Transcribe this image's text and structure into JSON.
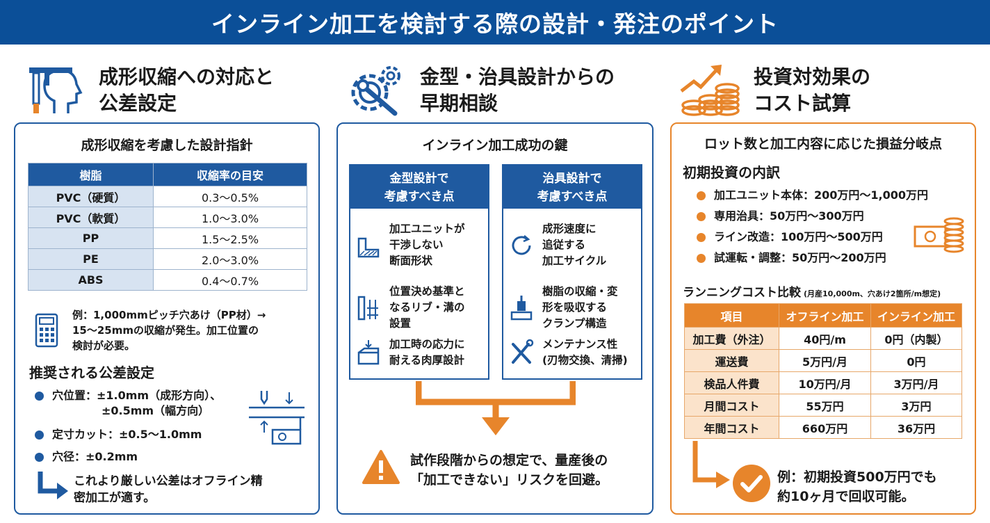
{
  "banner": {
    "title": "インライン加工を検討する際の設計・発注のポイント"
  },
  "sec1": {
    "title_line1": "成形収縮への対応と",
    "title_line2": "公差設定",
    "panel_title": "成形収縮を考慮した設計指針",
    "table": {
      "headers": [
        "樹脂",
        "収縮率の目安"
      ],
      "rows": [
        [
          "PVC（硬質）",
          "0.3〜0.5%"
        ],
        [
          "PVC（軟質）",
          "1.0〜3.0%"
        ],
        [
          "PP",
          "1.5〜2.5%"
        ],
        [
          "PE",
          "2.0〜3.0%"
        ],
        [
          "ABS",
          "0.4〜0.7%"
        ]
      ]
    },
    "example": [
      "例：1,000mmピッチ穴あけ（PP材）→",
      "15〜25mmの収縮が発生。加工位置の",
      "検討が必要。"
    ],
    "tol_heading": "推奨される公差設定",
    "tolerances": [
      {
        "line1": "穴位置：±1.0mm（成形方向）、",
        "line2": "±0.5mm（幅方向）"
      },
      {
        "line1": "定寸カット：±0.5〜1.0mm",
        "line2": ""
      },
      {
        "line1": "穴径：±0.2mm",
        "line2": ""
      }
    ],
    "note": [
      "これより厳しい公差はオフライン精",
      "密加工が適す。"
    ]
  },
  "sec2": {
    "title_line1": "金型・治具設計からの",
    "title_line2": "早期相談",
    "panel_title": "インライン加工成功の鍵",
    "col1": {
      "header": "金型設計で\n考慮すべき点",
      "items": [
        "加工ユニットが\n干渉しない\n断面形状",
        "位置決め基準と\nなるリブ・溝の\n設置",
        "加工時の応力に\n耐える肉厚設計"
      ]
    },
    "col2": {
      "header": "治具設計で\n考慮すべき点",
      "items": [
        "成形速度に\n追従する\n加工サイクル",
        "樹脂の収縮・変\n形を吸収する\nクランプ構造",
        "メンテナンス性\n(刃物交換、清掃)"
      ]
    },
    "warning": [
      "試作段階からの想定で、量産後の",
      "「加工できない」リスクを回避。"
    ]
  },
  "sec3": {
    "title_line1": "投資対効果の",
    "title_line2": "コスト試算",
    "panel_title": "ロット数と加工内容に応じた損益分岐点",
    "invest_heading": "初期投資の内訳",
    "invest_items": [
      "加工ユニット本体：200万円〜1,000万円",
      "専用治具：50万円〜300万円",
      "ライン改造：100万円〜500万円",
      "試運転・調整：50万円〜200万円"
    ],
    "running_heading": "ランニングコスト比較",
    "running_note": "(月産10,000m、穴あけ2箇所/m想定)",
    "table": {
      "headers": [
        "項目",
        "オフライン加工",
        "インライン加工"
      ],
      "rows": [
        [
          "加工費（外注）",
          "40円/m",
          "0円（内製）"
        ],
        [
          "運送費",
          "5万円/月",
          "0円"
        ],
        [
          "検品人件費",
          "10万円/月",
          "3万円/月"
        ],
        [
          "月間コスト",
          "55万円",
          "3万円"
        ],
        [
          "年間コスト",
          "660万円",
          "36万円"
        ]
      ]
    },
    "conclusion": [
      "例：初期投資500万円でも",
      "約10ヶ月で回収可能。"
    ]
  },
  "colors": {
    "blue": "#1f5aa0",
    "banner": "#0b4f98",
    "orange": "#e7852b"
  }
}
